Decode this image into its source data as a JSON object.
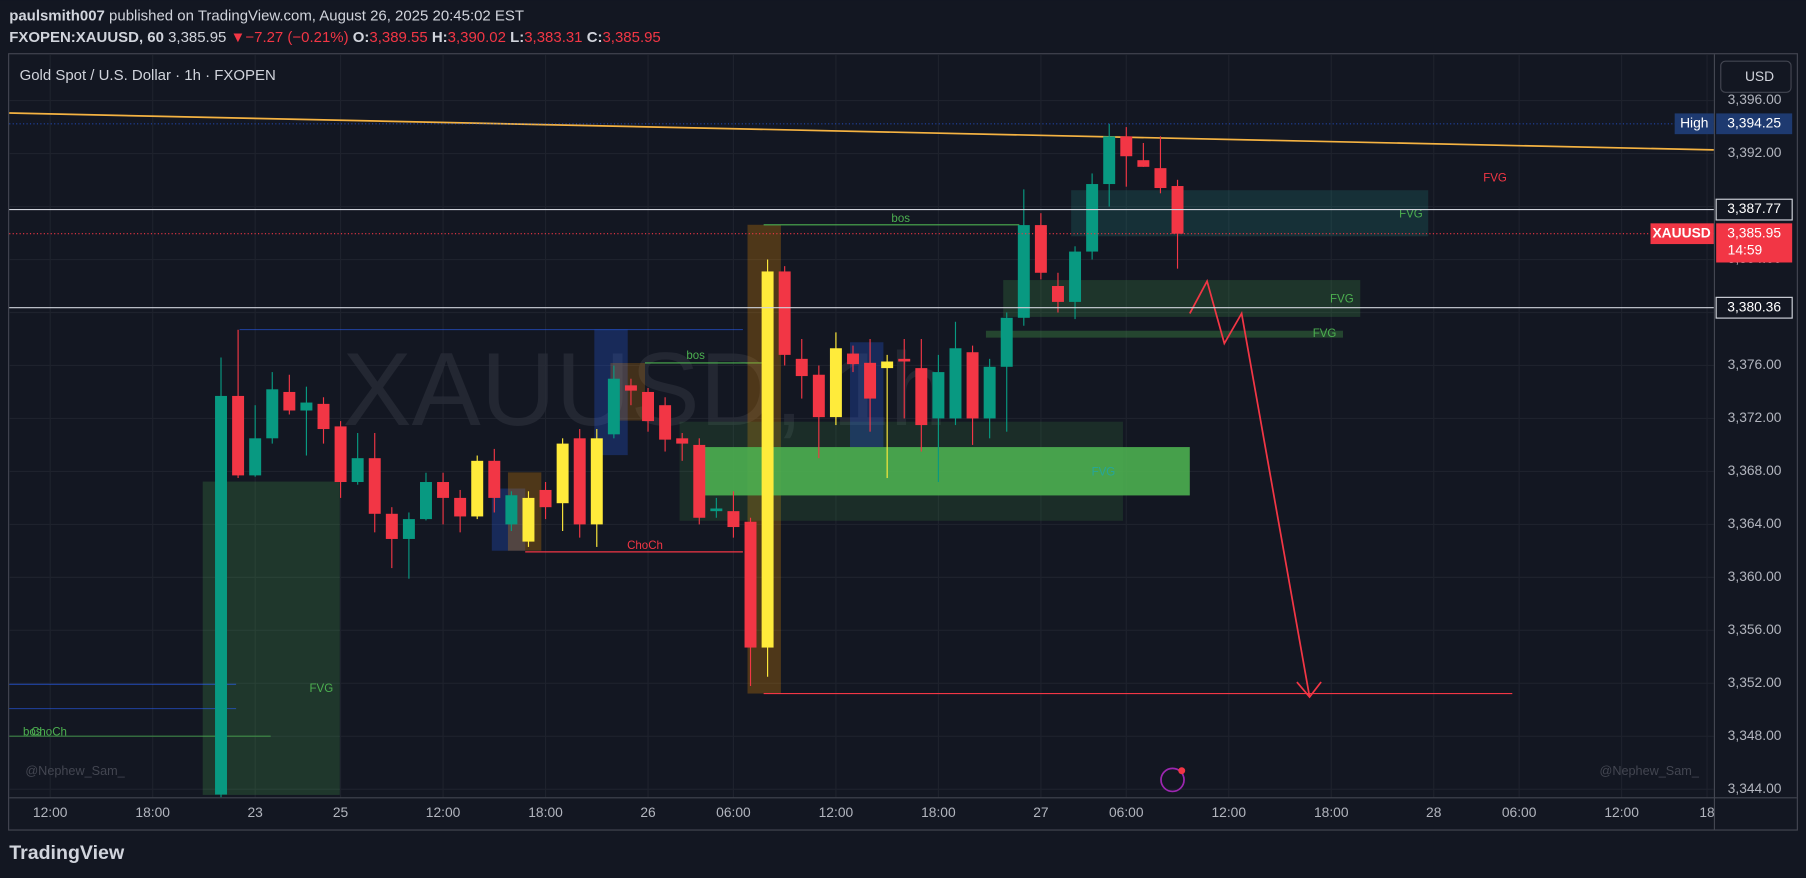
{
  "header": {
    "author": "paulsmith007",
    "published": "published on TradingView.com, August 26, 2025 20:45:02 EST",
    "symbol": "FXOPEN:XAUUSD, 60",
    "last": "3,385.95",
    "change_arrow": "▼",
    "change": "−7.27 (−0.21%)",
    "o_label": "O:",
    "o": "3,389.55",
    "h_label": "H:",
    "h": "3,390.02",
    "l_label": "L:",
    "l": "3,383.31",
    "c_label": "C:",
    "c": "3,385.95"
  },
  "footer": {
    "brand": "TradingView"
  },
  "chart_data": {
    "type": "candlestick",
    "title": "Gold Spot / U.S. Dollar · 1h · FXOPEN",
    "currency": "USD",
    "watermark": "XAUUSD, 1h",
    "signature_left": "@Nephew_Sam_",
    "signature_right": "@Nephew_Sam_",
    "x": [
      10,
      11,
      12,
      13,
      14,
      15,
      16,
      17,
      18,
      19,
      20,
      21,
      22,
      23,
      24,
      25,
      26,
      27,
      28,
      29,
      30,
      31,
      32,
      33,
      34,
      35,
      36,
      37,
      38,
      39,
      40,
      41,
      42,
      43,
      44,
      45,
      46,
      47,
      48,
      49,
      50,
      51,
      52,
      53,
      54,
      55,
      56,
      57,
      58,
      59,
      60,
      61,
      62,
      63,
      64,
      65,
      66
    ],
    "open": [
      3343.6,
      3373.7,
      3367.7,
      3370.5,
      3374.0,
      3372.6,
      3373.1,
      3371.4,
      3367.2,
      3369.0,
      3364.8,
      3362.9,
      3364.4,
      3367.2,
      3366.0,
      3364.6,
      3368.8,
      3364.0,
      3362.7,
      3366.6,
      3365.6,
      3370.5,
      3364.0,
      3370.8,
      3374.5,
      3374.0,
      3373.0,
      3370.5,
      3370.0,
      3365.0,
      3365.0,
      3364.2,
      3354.7,
      3383.1,
      3376.5,
      3375.3,
      3372.1,
      3376.9,
      3376.2,
      3375.8,
      3376.5,
      3375.8,
      3372.0,
      3372.0,
      3377.0,
      3372.0,
      3375.9,
      3379.6,
      3386.6,
      3382.0,
      3380.8,
      3384.6,
      3389.7,
      3393.3,
      3391.5,
      3390.9,
      3389.55
    ],
    "high": [
      3376.6,
      3378.7,
      3373.0,
      3375.5,
      3375.3,
      3374.4,
      3373.6,
      3371.8,
      3370.9,
      3370.9,
      3365.3,
      3364.9,
      3367.9,
      3367.9,
      3366.6,
      3369.2,
      3369.7,
      3366.5,
      3366.5,
      3367.2,
      3370.5,
      3371.2,
      3371.2,
      3376.0,
      3375.0,
      3374.3,
      3373.6,
      3370.9,
      3370.5,
      3366.0,
      3366.5,
      3364.5,
      3384.0,
      3383.5,
      3378.0,
      3376.0,
      3378.5,
      3377.5,
      3378.0,
      3376.8,
      3378.0,
      3378.0,
      3376.8,
      3379.3,
      3377.5,
      3376.5,
      3380.0,
      3389.3,
      3387.5,
      3383.0,
      3385.0,
      3390.5,
      3394.25,
      3394.0,
      3392.8,
      3393.3,
      3390.02
    ],
    "low": [
      3343.4,
      3367.5,
      3367.6,
      3370.1,
      3372.3,
      3369.2,
      3370.1,
      3366.0,
      3367.0,
      3363.4,
      3360.7,
      3359.9,
      3364.3,
      3364.0,
      3363.4,
      3364.4,
      3364.9,
      3363.5,
      3362.3,
      3364.4,
      3363.5,
      3363.0,
      3362.3,
      3370.5,
      3373.0,
      3371.0,
      3369.5,
      3368.8,
      3364.0,
      3364.5,
      3363.0,
      3351.8,
      3352.5,
      3376.0,
      3373.5,
      3369.0,
      3371.5,
      3375.5,
      3371.0,
      3367.5,
      3372.0,
      3369.5,
      3367.2,
      3371.5,
      3370.0,
      3370.5,
      3371.0,
      3379.0,
      3382.5,
      3380.0,
      3379.5,
      3384.0,
      3388.0,
      3389.5,
      3391.0,
      3389.0,
      3383.31
    ],
    "close": [
      3373.7,
      3367.7,
      3370.5,
      3374.2,
      3372.6,
      3373.2,
      3371.2,
      3367.2,
      3369.0,
      3364.8,
      3362.9,
      3364.4,
      3367.2,
      3366.0,
      3364.6,
      3368.8,
      3366.0,
      3366.2,
      3366.0,
      3365.3,
      3370.1,
      3364.0,
      3370.5,
      3375.0,
      3374.1,
      3371.8,
      3370.4,
      3370.1,
      3364.5,
      3365.2,
      3363.8,
      3354.7,
      3383.1,
      3376.8,
      3375.2,
      3372.1,
      3377.3,
      3376.1,
      3373.5,
      3376.3,
      3376.3,
      3371.5,
      3375.5,
      3377.3,
      3372.0,
      3375.9,
      3379.6,
      3386.6,
      3383.0,
      3380.8,
      3384.6,
      3389.7,
      3393.3,
      3391.8,
      3391.0,
      3389.4,
      3385.95
    ],
    "up_color": "#089981",
    "down_color": "#f23645",
    "highlight_color": "#ffeb3b",
    "highlighted": [
      25,
      28,
      30,
      32,
      42,
      46,
      49
    ],
    "xlim": [
      -2.4,
      97.4
    ],
    "xticks": [
      {
        "value": 0,
        "label": "12:00"
      },
      {
        "value": 6,
        "label": "18:00"
      },
      {
        "value": 12,
        "label": "23"
      },
      {
        "value": 17,
        "label": "25"
      },
      {
        "value": 23,
        "label": "12:00"
      },
      {
        "value": 29,
        "label": "18:00"
      },
      {
        "value": 35,
        "label": "26"
      },
      {
        "value": 40,
        "label": "06:00"
      },
      {
        "value": 46,
        "label": "12:00"
      },
      {
        "value": 52,
        "label": "18:00"
      },
      {
        "value": 58,
        "label": "27"
      },
      {
        "value": 63,
        "label": "06:00"
      },
      {
        "value": 69,
        "label": "12:00"
      },
      {
        "value": 75,
        "label": "18:00"
      },
      {
        "value": 81,
        "label": "28"
      },
      {
        "value": 86,
        "label": "06:00"
      },
      {
        "value": 92,
        "label": "12:00"
      },
      {
        "value": 97,
        "label": "18"
      }
    ],
    "ylim": [
      3343.4,
      3396.8
    ],
    "yticks": [
      {
        "value": 3344,
        "label": "3,344.00"
      },
      {
        "value": 3348,
        "label": "3,348.00"
      },
      {
        "value": 3352,
        "label": "3,352.00"
      },
      {
        "value": 3356,
        "label": "3,356.00"
      },
      {
        "value": 3360,
        "label": "3,360.00"
      },
      {
        "value": 3364,
        "label": "3,364.00"
      },
      {
        "value": 3368,
        "label": "3,368.00"
      },
      {
        "value": 3372,
        "label": "3,372.00"
      },
      {
        "value": 3376,
        "label": "3,376.00"
      },
      {
        "value": 3380,
        "label": "3,380.00"
      },
      {
        "value": 3384,
        "label": "3,384.00"
      },
      {
        "value": 3388,
        "label": "3,388.00"
      },
      {
        "value": 3392,
        "label": "3,392.00"
      },
      {
        "value": 3396,
        "label": "3,396.00"
      }
    ],
    "grid": true,
    "price_lines": [
      {
        "value": 3387.77,
        "label": "3,387.77"
      },
      {
        "value": 3380.36,
        "label": "3,380.36"
      }
    ],
    "high_marker": {
      "label": "High",
      "value": 3394.25,
      "value_label": "3,394.25"
    },
    "last_price": {
      "symbol": "XAUUSD",
      "value": 3385.95,
      "value_label": "3,385.95",
      "countdown": "14:59"
    },
    "annotations": [
      "FVG",
      "bos",
      "ChoCh",
      "bos",
      "ChoCh",
      "bos",
      "FVG",
      "FVG",
      "FVG",
      "FVG",
      "FVG"
    ]
  }
}
